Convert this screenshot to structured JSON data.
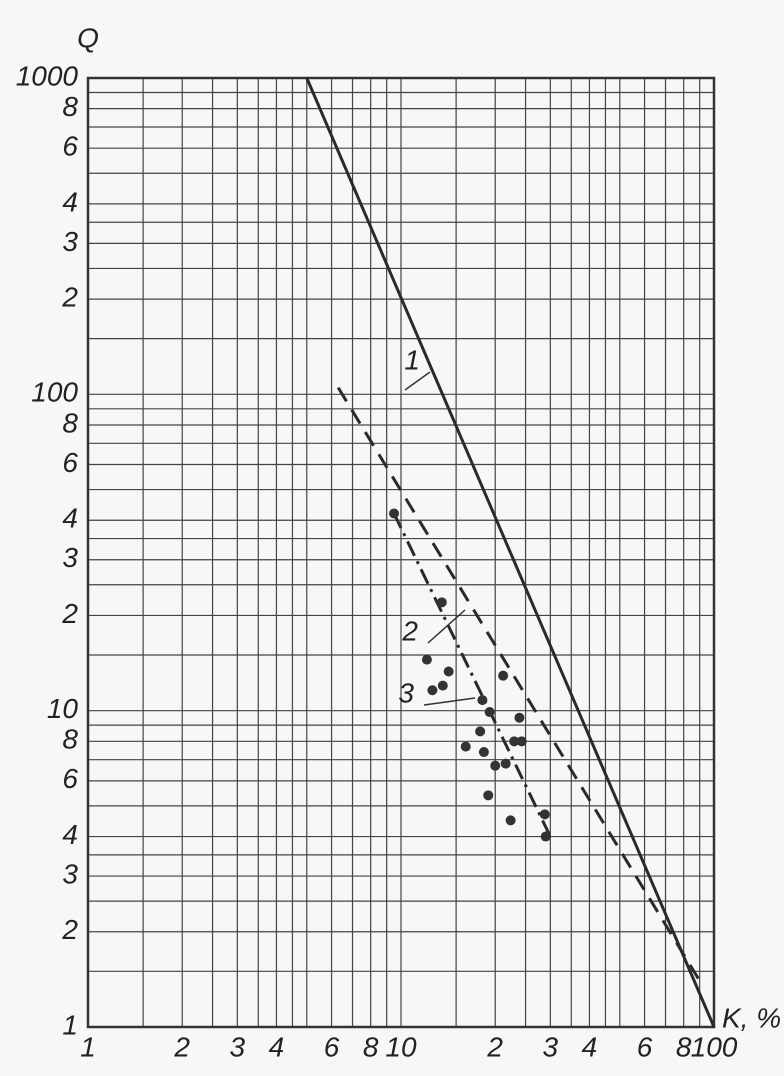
{
  "chart_data": {
    "type": "line",
    "y_label": "Q",
    "x_label": "K, %",
    "log_x": true,
    "log_y": true,
    "grid": true,
    "xlim": [
      1,
      100
    ],
    "ylim": [
      1,
      1000
    ],
    "xticks": [
      1,
      2,
      3,
      4,
      6,
      8,
      10,
      {
        "value": 20,
        "label": "2"
      },
      {
        "value": 30,
        "label": "3"
      },
      {
        "value": 40,
        "label": "4"
      },
      {
        "value": 60,
        "label": "6"
      },
      {
        "value": 80,
        "label": "8"
      },
      100
    ],
    "yticks": [
      1,
      2,
      3,
      4,
      6,
      8,
      10,
      {
        "value": 20,
        "label": "2"
      },
      {
        "value": 30,
        "label": "3"
      },
      {
        "value": 40,
        "label": "4"
      },
      {
        "value": 60,
        "label": "6"
      },
      {
        "value": 80,
        "label": "8"
      },
      100,
      {
        "value": 200,
        "label": "2"
      },
      {
        "value": 300,
        "label": "3"
      },
      {
        "value": 400,
        "label": "4"
      },
      {
        "value": 600,
        "label": "6"
      },
      {
        "value": 800,
        "label": "8"
      },
      1000
    ],
    "xgrid": [
      1.5,
      2.5,
      3.5,
      4.5,
      5,
      7,
      9,
      15,
      25,
      35,
      45,
      50,
      70,
      90
    ],
    "ygrid": [
      1.5,
      2.5,
      3.5,
      5,
      7,
      9,
      15,
      25,
      35,
      50,
      70,
      90,
      150,
      250,
      350,
      500,
      700,
      900
    ],
    "series": [
      {
        "name": "1",
        "color": "#2a2a2a",
        "dash": "solid",
        "x": [
          5,
          100
        ],
        "values": [
          1000,
          1
        ]
      },
      {
        "name": "2",
        "color": "#2a2a2a",
        "dash": "dashed",
        "x": [
          6.3,
          90
        ],
        "values": [
          105,
          1.4
        ]
      },
      {
        "name": "3",
        "color": "#2a2a2a",
        "dash": "dashdot",
        "x": [
          9.5,
          30
        ],
        "values": [
          42,
          4
        ]
      }
    ],
    "points": {
      "color": "#333333",
      "x": [
        9.5,
        13.5,
        12.1,
        12.6,
        13.6,
        14.2,
        18.2,
        19.2,
        17.9,
        16.1,
        18.4,
        20,
        21.6,
        19,
        22.4,
        21.2,
        23.9,
        24.3,
        23,
        28.8,
        29
      ],
      "values": [
        42,
        22,
        14.5,
        11.6,
        12,
        13.3,
        10.8,
        9.9,
        8.6,
        7.7,
        7.4,
        6.7,
        6.8,
        5.4,
        4.5,
        12.9,
        9.5,
        8.0,
        8.0,
        4.7,
        4.0
      ]
    }
  }
}
